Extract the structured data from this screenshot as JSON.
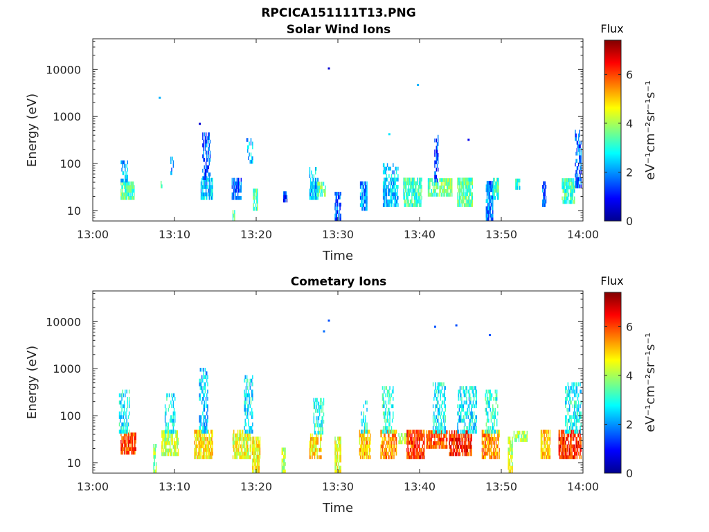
{
  "figure": {
    "title": "RPCICA151111T13.PNG"
  },
  "chart_data": [
    {
      "type": "heatmap",
      "title": "Solar Wind Ions",
      "xlabel": "Time",
      "ylabel": "Energy (eV)",
      "x_ticks": [
        "13:00",
        "13:10",
        "13:20",
        "13:30",
        "13:40",
        "13:50",
        "14:00"
      ],
      "xlim_minutes": [
        0,
        60
      ],
      "y_scale": "log",
      "ylim": [
        6,
        45000
      ],
      "y_ticks": [
        10,
        100,
        1000,
        10000
      ],
      "y_tick_labels": [
        "10",
        "100",
        "1000",
        "10000"
      ],
      "colorbar": {
        "title": "Flux",
        "label": "eV⁻¹cm⁻²sr⁻¹s⁻¹",
        "range": [
          0,
          7.4
        ],
        "ticks": [
          0,
          2,
          4,
          6
        ],
        "colormap": "jet"
      },
      "clusters": [
        {
          "t": [
            3.4,
            5.0
          ],
          "e": [
            17,
            40
          ],
          "v": 3.4
        },
        {
          "t": [
            3.4,
            4.2
          ],
          "e": [
            40,
            105
          ],
          "v": 2.2
        },
        {
          "t": [
            8.3,
            8.5
          ],
          "e": [
            30,
            42
          ],
          "v": 3.5
        },
        {
          "t": [
            9.5,
            9.8
          ],
          "e": [
            48,
            120
          ],
          "v": 1.8
        },
        {
          "t": [
            13.2,
            14.6
          ],
          "e": [
            17,
            45
          ],
          "v": 2.4
        },
        {
          "t": [
            13.4,
            14.3
          ],
          "e": [
            45,
            420
          ],
          "v": 1.6
        },
        {
          "t": [
            17.1,
            17.4
          ],
          "e": [
            6,
            10
          ],
          "v": 3.2
        },
        {
          "t": [
            17.0,
            18.2
          ],
          "e": [
            17,
            42
          ],
          "v": 1.7
        },
        {
          "t": [
            18.8,
            19.6
          ],
          "e": [
            100,
            300
          ],
          "v": 2.2
        },
        {
          "t": [
            19.6,
            20.2
          ],
          "e": [
            10,
            28
          ],
          "v": 3.4
        },
        {
          "t": [
            23.3,
            23.8
          ],
          "e": [
            15,
            22
          ],
          "v": 1.2
        },
        {
          "t": [
            26.5,
            27.6
          ],
          "e": [
            17,
            80
          ],
          "v": 2.4
        },
        {
          "t": [
            27.5,
            28.5
          ],
          "e": [
            20,
            40
          ],
          "v": 3.4
        },
        {
          "t": [
            29.6,
            30.4
          ],
          "e": [
            6,
            22
          ],
          "v": 1.6
        },
        {
          "t": [
            32.7,
            33.6
          ],
          "e": [
            10,
            40
          ],
          "v": 2.0
        },
        {
          "t": [
            35.5,
            37.4
          ],
          "e": [
            12,
            95
          ],
          "v": 2.3
        },
        {
          "t": [
            38.0,
            40.3
          ],
          "e": [
            12,
            42
          ],
          "v": 3.2
        },
        {
          "t": [
            41.0,
            42.3
          ],
          "e": [
            20,
            45
          ],
          "v": 3.3
        },
        {
          "t": [
            41.8,
            42.3
          ],
          "e": [
            40,
            400
          ],
          "v": 1.5
        },
        {
          "t": [
            42.4,
            44.0
          ],
          "e": [
            20,
            45
          ],
          "v": 3.7
        },
        {
          "t": [
            44.6,
            46.5
          ],
          "e": [
            12,
            42
          ],
          "v": 3.4
        },
        {
          "t": [
            48.1,
            49.0
          ],
          "e": [
            6,
            40
          ],
          "v": 1.9
        },
        {
          "t": [
            49.0,
            49.7
          ],
          "e": [
            17,
            42
          ],
          "v": 3.2
        },
        {
          "t": [
            51.7,
            52.3
          ],
          "e": [
            28,
            42
          ],
          "v": 3.0
        },
        {
          "t": [
            55.0,
            55.5
          ],
          "e": [
            12,
            40
          ],
          "v": 1.8
        },
        {
          "t": [
            57.4,
            59.0
          ],
          "e": [
            14,
            45
          ],
          "v": 3.2
        },
        {
          "t": [
            59.0,
            59.8
          ],
          "e": [
            30,
            450
          ],
          "v": 1.6
        }
      ],
      "points": [
        {
          "t": 8.2,
          "e": 2500,
          "v": 2.2
        },
        {
          "t": 28.9,
          "e": 10500,
          "v": 0.6
        },
        {
          "t": 39.8,
          "e": 4700,
          "v": 2.2
        },
        {
          "t": 13.1,
          "e": 700,
          "v": 0.6
        },
        {
          "t": 36.3,
          "e": 420,
          "v": 2.6
        },
        {
          "t": 46.0,
          "e": 320,
          "v": 0.8
        }
      ]
    },
    {
      "type": "heatmap",
      "title": "Cometary Ions",
      "xlabel": "Time",
      "ylabel": "Energy (eV)",
      "x_ticks": [
        "13:00",
        "13:10",
        "13:20",
        "13:30",
        "13:40",
        "13:50",
        "14:00"
      ],
      "xlim_minutes": [
        0,
        60
      ],
      "y_scale": "log",
      "ylim": [
        6,
        45000
      ],
      "y_ticks": [
        10,
        100,
        1000,
        10000
      ],
      "y_tick_labels": [
        "10",
        "100",
        "1000",
        "10000"
      ],
      "colorbar": {
        "title": "Flux",
        "label": "eV⁻¹cm⁻²sr⁻¹s⁻¹",
        "range": [
          0,
          7.4
        ],
        "ticks": [
          0,
          2,
          4,
          6
        ],
        "colormap": "jet"
      },
      "clusters": [
        {
          "t": [
            3.4,
            5.2
          ],
          "e": [
            15,
            42
          ],
          "v": 6.0
        },
        {
          "t": [
            3.2,
            4.4
          ],
          "e": [
            42,
            300
          ],
          "v": 2.8
        },
        {
          "t": [
            7.4,
            7.7
          ],
          "e": [
            6,
            22
          ],
          "v": 3.8
        },
        {
          "t": [
            8.4,
            10.4
          ],
          "e": [
            14,
            42
          ],
          "v": 4.2
        },
        {
          "t": [
            8.8,
            10.0
          ],
          "e": [
            42,
            260
          ],
          "v": 2.8
        },
        {
          "t": [
            12.4,
            14.6
          ],
          "e": [
            12,
            42
          ],
          "v": 4.8
        },
        {
          "t": [
            13.0,
            14.0
          ],
          "e": [
            42,
            950
          ],
          "v": 2.4
        },
        {
          "t": [
            17.1,
            19.4
          ],
          "e": [
            12,
            42
          ],
          "v": 4.5
        },
        {
          "t": [
            18.5,
            19.6
          ],
          "e": [
            42,
            700
          ],
          "v": 2.7
        },
        {
          "t": [
            19.5,
            20.5
          ],
          "e": [
            6,
            30
          ],
          "v": 4.6
        },
        {
          "t": [
            23.1,
            23.6
          ],
          "e": [
            6,
            20
          ],
          "v": 4.0
        },
        {
          "t": [
            26.5,
            28.0
          ],
          "e": [
            12,
            40
          ],
          "v": 4.8
        },
        {
          "t": [
            27.0,
            28.3
          ],
          "e": [
            40,
            220
          ],
          "v": 3.0
        },
        {
          "t": [
            29.6,
            30.4
          ],
          "e": [
            6,
            30
          ],
          "v": 4.5
        },
        {
          "t": [
            32.6,
            34.0
          ],
          "e": [
            12,
            42
          ],
          "v": 5.0
        },
        {
          "t": [
            32.8,
            33.6
          ],
          "e": [
            42,
            200
          ],
          "v": 3.0
        },
        {
          "t": [
            35.2,
            37.2
          ],
          "e": [
            12,
            42
          ],
          "v": 5.4
        },
        {
          "t": [
            35.4,
            36.8
          ],
          "e": [
            42,
            380
          ],
          "v": 3.0
        },
        {
          "t": [
            37.4,
            38.8
          ],
          "e": [
            25,
            42
          ],
          "v": 4.0
        },
        {
          "t": [
            38.4,
            40.6
          ],
          "e": [
            12,
            42
          ],
          "v": 6.0
        },
        {
          "t": [
            40.8,
            43.4
          ],
          "e": [
            20,
            42
          ],
          "v": 5.8
        },
        {
          "t": [
            41.6,
            43.2
          ],
          "e": [
            42,
            500
          ],
          "v": 2.8
        },
        {
          "t": [
            43.6,
            46.4
          ],
          "e": [
            14,
            42
          ],
          "v": 6.2
        },
        {
          "t": [
            44.6,
            47.0
          ],
          "e": [
            42,
            400
          ],
          "v": 2.7
        },
        {
          "t": [
            47.6,
            49.8
          ],
          "e": [
            12,
            42
          ],
          "v": 5.4
        },
        {
          "t": [
            48.0,
            49.6
          ],
          "e": [
            42,
            300
          ],
          "v": 3.0
        },
        {
          "t": [
            50.8,
            51.4
          ],
          "e": [
            6,
            30
          ],
          "v": 4.2
        },
        {
          "t": [
            51.5,
            53.2
          ],
          "e": [
            28,
            42
          ],
          "v": 4.0
        },
        {
          "t": [
            54.8,
            56.0
          ],
          "e": [
            12,
            42
          ],
          "v": 5.0
        },
        {
          "t": [
            57.0,
            59.8
          ],
          "e": [
            12,
            42
          ],
          "v": 6.2
        },
        {
          "t": [
            57.8,
            59.8
          ],
          "e": [
            42,
            480
          ],
          "v": 2.8
        }
      ],
      "points": [
        {
          "t": 28.3,
          "e": 6200,
          "v": 1.7
        },
        {
          "t": 28.9,
          "e": 10500,
          "v": 1.5
        },
        {
          "t": 41.9,
          "e": 7800,
          "v": 1.5
        },
        {
          "t": 44.5,
          "e": 8300,
          "v": 1.5
        },
        {
          "t": 48.6,
          "e": 5200,
          "v": 1.5
        }
      ]
    }
  ]
}
